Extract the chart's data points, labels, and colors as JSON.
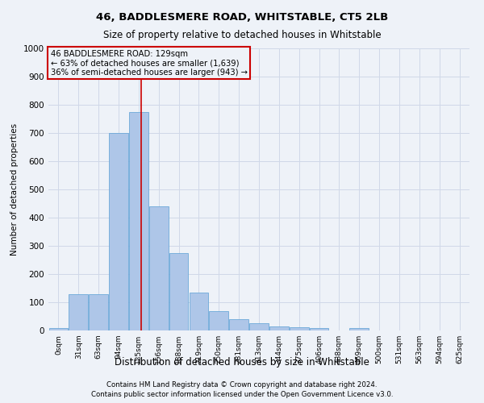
{
  "title": "46, BADDLESMERE ROAD, WHITSTABLE, CT5 2LB",
  "subtitle": "Size of property relative to detached houses in Whitstable",
  "xlabel": "Distribution of detached houses by size in Whitstable",
  "ylabel": "Number of detached properties",
  "footnote1": "Contains HM Land Registry data © Crown copyright and database right 2024.",
  "footnote2": "Contains public sector information licensed under the Open Government Licence v3.0.",
  "bin_labels": [
    "0sqm",
    "31sqm",
    "63sqm",
    "94sqm",
    "125sqm",
    "156sqm",
    "188sqm",
    "219sqm",
    "250sqm",
    "281sqm",
    "313sqm",
    "344sqm",
    "375sqm",
    "406sqm",
    "438sqm",
    "469sqm",
    "500sqm",
    "531sqm",
    "563sqm",
    "594sqm",
    "625sqm"
  ],
  "bar_values": [
    8,
    128,
    128,
    700,
    775,
    440,
    275,
    135,
    70,
    40,
    25,
    13,
    12,
    8,
    0,
    10,
    0,
    0,
    0,
    0,
    0
  ],
  "bar_color": "#aec6e8",
  "bar_edge_color": "#5a9fd4",
  "grid_color": "#d0d8e8",
  "background_color": "#eef2f8",
  "annotation_box_color": "#cc0000",
  "annotation_line_color": "#cc0000",
  "annotation_text_line1": "46 BADDLESMERE ROAD: 129sqm",
  "annotation_text_line2": "← 63% of detached houses are smaller (1,639)",
  "annotation_text_line3": "36% of semi-detached houses are larger (943) →",
  "property_size": 129,
  "ylim": [
    0,
    1000
  ],
  "yticks": [
    0,
    100,
    200,
    300,
    400,
    500,
    600,
    700,
    800,
    900,
    1000
  ]
}
